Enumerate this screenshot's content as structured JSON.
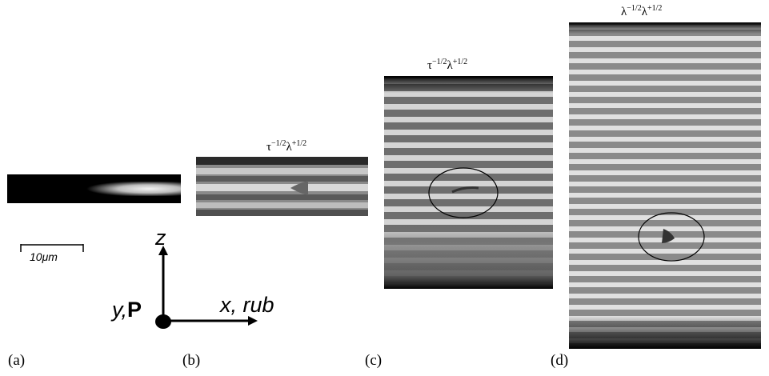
{
  "panels": {
    "a": {
      "label": "(a)"
    },
    "b": {
      "label": "(b)",
      "title_base": "τ",
      "title_exp1": "−1/2",
      "title_mid": "λ",
      "title_exp2": "+1/2"
    },
    "c": {
      "label": "(c)",
      "title_base": "τ",
      "title_exp1": "−1/2",
      "title_mid": "λ",
      "title_exp2": "+1/2"
    },
    "d": {
      "label": "(d)",
      "title_base": "λ",
      "title_exp1": "−1/2",
      "title_mid": "λ",
      "title_exp2": "+1/2"
    }
  },
  "scale_bar": {
    "label": "10μm"
  },
  "axes": {
    "z_label": "z",
    "y_label": "y,",
    "p_label": "P",
    "x_label": "x, rub"
  },
  "colors": {
    "background": "#ffffff",
    "ink": "#000000"
  }
}
